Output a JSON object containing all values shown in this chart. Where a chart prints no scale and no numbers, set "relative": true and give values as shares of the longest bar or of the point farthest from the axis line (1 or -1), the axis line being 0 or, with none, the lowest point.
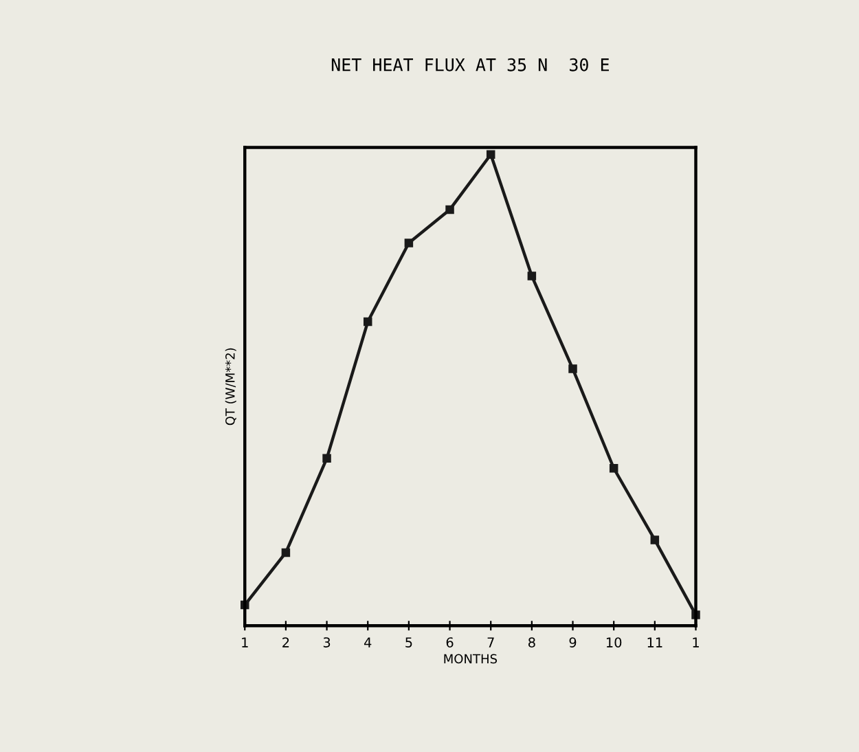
{
  "chart_data": {
    "type": "line",
    "title": "NET HEAT FLUX AT 35 N  30 E",
    "xlabel": "MONTHS",
    "ylabel": "QT (W/M**2)",
    "categories": [
      "1",
      "2",
      "3",
      "4",
      "5",
      "6",
      "7",
      "8",
      "9",
      "10",
      "11",
      "1"
    ],
    "relative": true,
    "tick_labels": "x",
    "marker": "square",
    "line_style": "solid",
    "series": [
      {
        "color": "#1a1a1a",
        "values": [
          0.044,
          0.155,
          0.355,
          0.645,
          0.812,
          0.883,
          1,
          0.742,
          0.545,
          0.334,
          0.182,
          0.023
        ]
      }
    ]
  }
}
